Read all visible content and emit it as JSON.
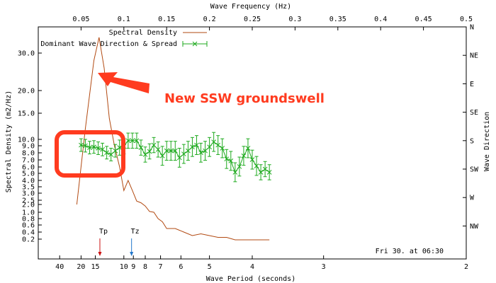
{
  "chart_data": {
    "type": "line",
    "top_axis": {
      "label": "Wave Frequency (Hz)",
      "range": [
        0.0,
        0.5
      ],
      "ticks": [
        0.05,
        0.1,
        0.15,
        0.2,
        0.25,
        0.3,
        0.35,
        0.4,
        0.45,
        0.5
      ],
      "tick_labels": [
        "0.05",
        "0.1",
        "0.15",
        "0.2",
        "0.25",
        "0.3",
        "0.35",
        "0.4",
        "0.45",
        "0.5"
      ]
    },
    "bottom_axis": {
      "label": "Wave Period (seconds)",
      "ticks_period": [
        40,
        20,
        15,
        10,
        9,
        8,
        7,
        6,
        5,
        3,
        4,
        2
      ],
      "tick_labels": [
        "40",
        "20",
        "15",
        "10",
        "9",
        "8",
        "7",
        "6",
        "5",
        "3",
        "4",
        "2"
      ]
    },
    "left_axis": {
      "label": "Spectral Density (m2/Hz)",
      "ticks": [
        0.2,
        0.4,
        0.6,
        0.8,
        1.0,
        2.0,
        2.5,
        3.0,
        3.5,
        4.0,
        5.0,
        6.0,
        7.0,
        8.0,
        9.0,
        10.0,
        15.0,
        20.0,
        30.0
      ],
      "tick_labels": [
        "0.2",
        "0.4",
        "0.6",
        "0.8",
        "1.0",
        "2.0",
        "2.5",
        "3.0",
        "3.5",
        "4.0",
        "5.0",
        "6.0",
        "7.0",
        "8.0",
        "9.0",
        "10.0",
        "15.0",
        "20.0",
        "30.0"
      ]
    },
    "right_axis": {
      "label": "Wave Direction",
      "ticks": [
        "N",
        "NE",
        "E",
        "SE",
        "S",
        "SW",
        "W",
        "NW"
      ]
    },
    "legend": {
      "placement": "top-left",
      "entries": [
        "Spectral Density",
        "Dominant Wave Direction & Spread"
      ]
    },
    "series": [
      {
        "name": "Spectral Density",
        "color": "#b24a12",
        "x": [
          0.045,
          0.055,
          0.065,
          0.071,
          0.077,
          0.083,
          0.089,
          0.095,
          0.1,
          0.105,
          0.11,
          0.115,
          0.12,
          0.125,
          0.13,
          0.135,
          0.14,
          0.145,
          0.15,
          0.16,
          0.17,
          0.18,
          0.19,
          0.2,
          0.21,
          0.22,
          0.23,
          0.24,
          0.25,
          0.26,
          0.27
        ],
        "y": [
          2.0,
          12.0,
          28.0,
          36.0,
          26.0,
          14.0,
          9.0,
          6.0,
          3.2,
          4.0,
          3.2,
          2.4,
          2.2,
          1.8,
          1.1,
          1.0,
          0.8,
          0.7,
          0.5,
          0.5,
          0.4,
          0.3,
          0.35,
          0.3,
          0.25,
          0.25,
          0.15,
          0.15,
          0.15,
          0.15,
          0.15
        ]
      },
      {
        "name": "Dominant Wave Direction & Spread",
        "color": "#1eaa1e",
        "x": [
          0.05,
          0.055,
          0.06,
          0.065,
          0.07,
          0.075,
          0.08,
          0.085,
          0.09,
          0.095,
          0.1,
          0.105,
          0.11,
          0.115,
          0.12,
          0.125,
          0.13,
          0.135,
          0.14,
          0.145,
          0.15,
          0.155,
          0.16,
          0.165,
          0.17,
          0.175,
          0.18,
          0.185,
          0.19,
          0.195,
          0.2,
          0.205,
          0.21,
          0.215,
          0.22,
          0.225,
          0.23,
          0.235,
          0.24,
          0.245,
          0.25,
          0.255,
          0.26,
          0.265,
          0.27
        ],
        "direction_deg": [
          187,
          188,
          191,
          190,
          192,
          194,
          199,
          202,
          196,
          191,
          189,
          180,
          180,
          180,
          191,
          202,
          197,
          187,
          194,
          204,
          196,
          196,
          196,
          207,
          201,
          196,
          190,
          187,
          199,
          196,
          190,
          182,
          187,
          192,
          209,
          212,
          230,
          221,
          204,
          192,
          210,
          220,
          230,
          225,
          230
        ],
        "spread_deg": [
          10,
          10,
          10,
          10,
          10,
          10,
          10,
          10,
          10,
          12,
          12,
          12,
          12,
          12,
          12,
          12,
          12,
          12,
          12,
          15,
          15,
          15,
          15,
          15,
          15,
          15,
          15,
          15,
          15,
          15,
          15,
          15,
          15,
          15,
          15,
          15,
          15,
          15,
          15,
          15,
          15,
          15,
          12,
          12,
          12
        ]
      }
    ],
    "markers": [
      {
        "label": "Tp",
        "frequency": 0.072,
        "color": "#cc1111"
      },
      {
        "label": "Tz",
        "frequency": 0.109,
        "color": "#2277cc"
      }
    ],
    "timestamp": "Fri 30. at 06:30",
    "annotation": {
      "text": "New SSW groundswell",
      "color": "#ff3b1f"
    },
    "grid": false
  }
}
